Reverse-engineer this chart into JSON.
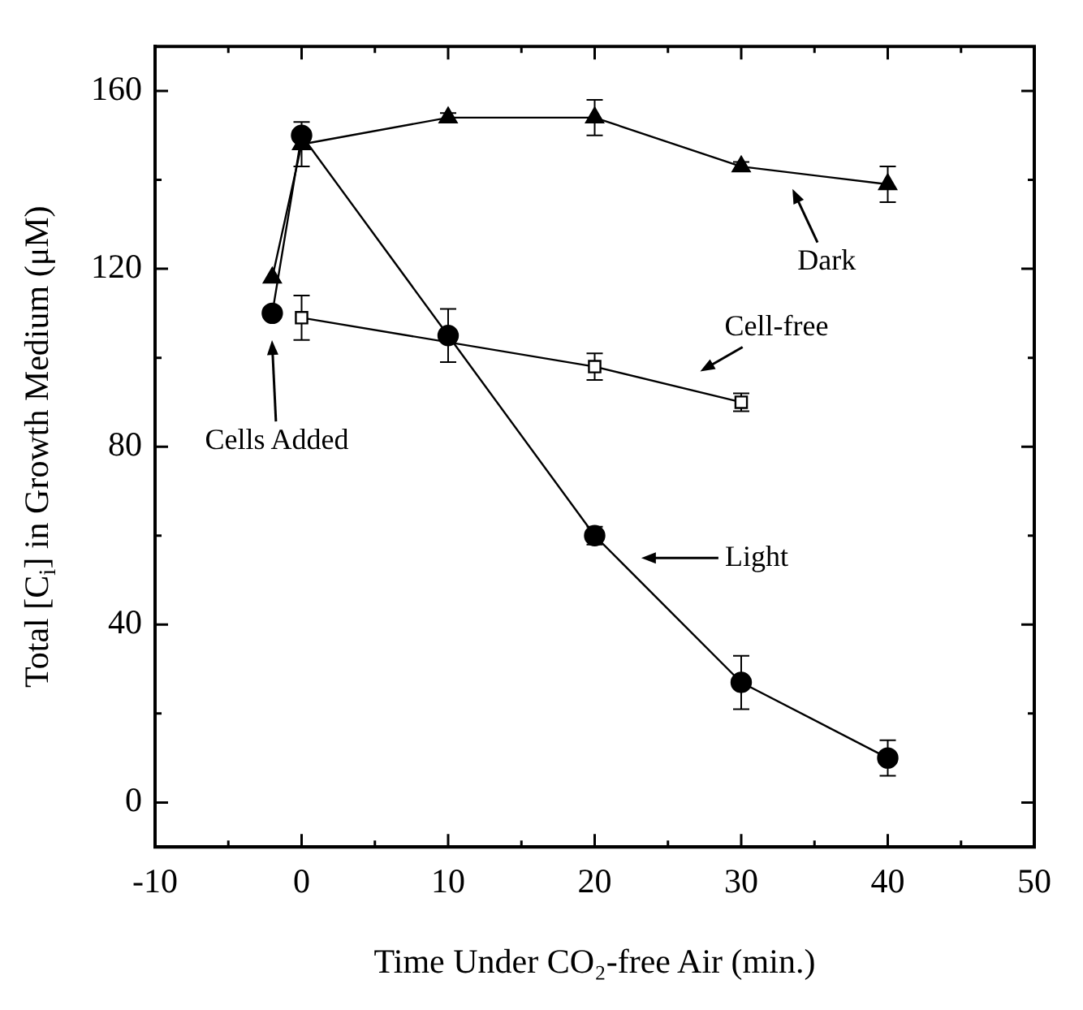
{
  "chart_data": {
    "type": "line",
    "xlabel": "Time Under CO₂-free Air (min.)",
    "ylabel": "Total [C$_{i}$] in Growth Medium (μM)",
    "xlim": [
      -10,
      50
    ],
    "xticks": [
      -10,
      {
        "value": -5,
        "label": null
      },
      0,
      {
        "value": 5,
        "label": null
      },
      10,
      {
        "value": 15,
        "label": null
      },
      20,
      {
        "value": 25,
        "label": null
      },
      30,
      {
        "value": 35,
        "label": null
      },
      40,
      {
        "value": 45,
        "label": null
      },
      50
    ],
    "ylim": [
      -10,
      170
    ],
    "yticks": [
      0,
      {
        "value": 20,
        "label": null
      },
      40,
      {
        "value": 60,
        "label": null
      },
      80,
      {
        "value": 100,
        "label": null
      },
      120,
      {
        "value": 140,
        "label": null
      },
      160
    ],
    "series": [
      {
        "color": "#000000",
        "marker": "triangle",
        "x": [
          -2,
          0,
          10,
          20,
          30,
          40
        ],
        "values": [
          118,
          148,
          154,
          154,
          143,
          139
        ],
        "errors": [
          null,
          5,
          1,
          4,
          1,
          4
        ]
      },
      {
        "color": "#000000",
        "marker": "circle",
        "x": [
          -2,
          0,
          10,
          20,
          30,
          40
        ],
        "values": [
          110,
          150,
          105,
          60,
          27,
          10
        ],
        "errors": [
          null,
          null,
          6,
          2,
          6,
          4
        ]
      },
      {
        "color": "#000000",
        "marker": "square",
        "x": [
          0,
          20,
          30
        ],
        "values": [
          109,
          98,
          90
        ],
        "errors": [
          5,
          3,
          2
        ]
      }
    ],
    "annotations": [
      "Cells Added",
      "Dark",
      "Cell-free",
      "Light"
    ]
  }
}
